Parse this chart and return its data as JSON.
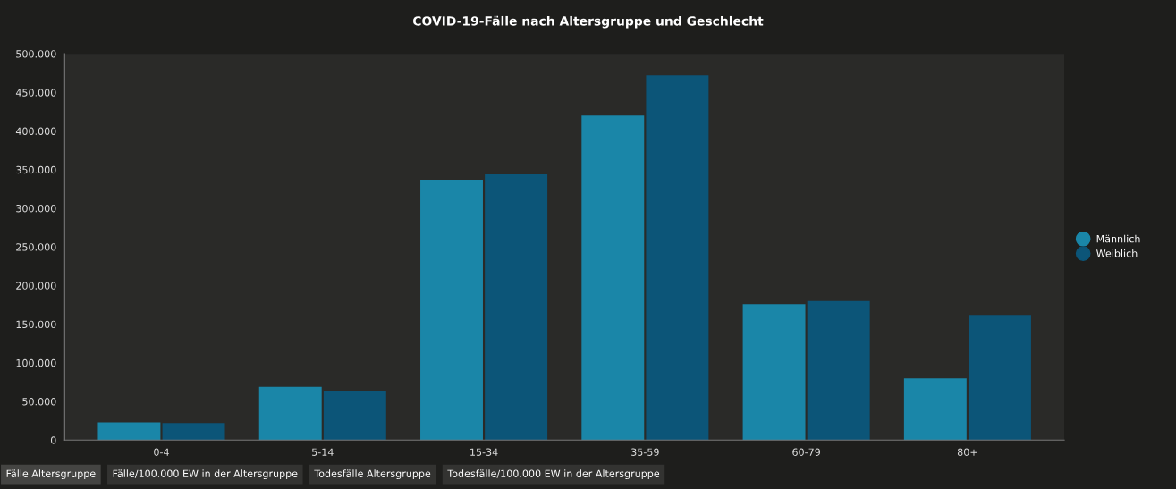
{
  "chart_data": {
    "type": "bar",
    "title": "COVID-19-Fälle nach Altersgruppe und Geschlecht",
    "categories": [
      "0-4",
      "5-14",
      "15-34",
      "35-59",
      "60-79",
      "80+"
    ],
    "series": [
      {
        "name": "Männlich",
        "color": "#1a86a8",
        "values": [
          23000,
          69000,
          337000,
          420000,
          176000,
          80000
        ]
      },
      {
        "name": "Weiblich",
        "color": "#0c5578",
        "values": [
          22000,
          64000,
          344000,
          472000,
          180000,
          162000
        ]
      }
    ],
    "ylim": [
      0,
      500000
    ],
    "yticks": [
      0,
      {
        "value": 50000,
        "label": "50.000"
      },
      {
        "value": 100000,
        "label": "100.000"
      },
      {
        "value": 150000,
        "label": "150.000"
      },
      {
        "value": 200000,
        "label": "200.000"
      },
      {
        "value": 250000,
        "label": "250.000"
      },
      {
        "value": 300000,
        "label": "300.000"
      },
      {
        "value": 350000,
        "label": "350.000"
      },
      {
        "value": 400000,
        "label": "400.000"
      },
      {
        "value": 450000,
        "label": "450.000"
      },
      {
        "value": 500000,
        "label": "500.000"
      }
    ],
    "grid": false,
    "legend": "right",
    "annotations": [
      "Fälle Altersgruppe",
      "Fälle/100.000 EW in der Altersgruppe",
      "Todesfälle Altersgruppe",
      "Todesfälle/100.000 EW in der Altersgruppe"
    ]
  }
}
